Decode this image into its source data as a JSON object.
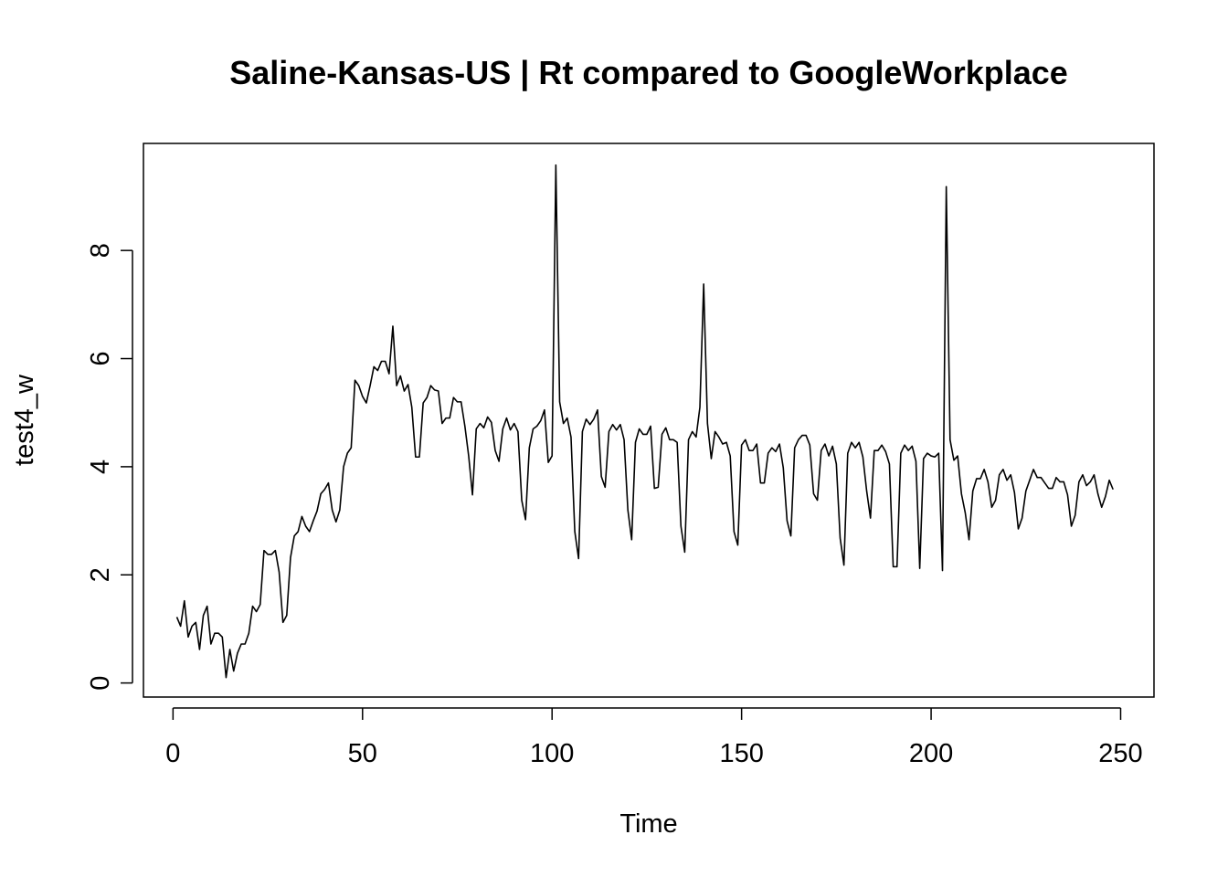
{
  "chart_data": {
    "type": "line",
    "title": "Saline-Kansas-US | Rt compared to GoogleWorkplace",
    "xlabel": "Time",
    "ylabel": "test4_w",
    "xlim": [
      -7.8,
      258.8
    ],
    "ylim": [
      -0.26,
      9.98
    ],
    "xticks": [
      0,
      50,
      100,
      150,
      200,
      250
    ],
    "yticks": [
      0,
      2,
      4,
      6,
      8
    ],
    "grid": false,
    "legend": "none",
    "line_color": "#000000",
    "x_start": 1,
    "series": [
      {
        "values": [
          1.22,
          1.05,
          1.52,
          0.85,
          1.05,
          1.12,
          0.62,
          1.25,
          1.42,
          0.72,
          0.92,
          0.92,
          0.85,
          0.1,
          0.62,
          0.22,
          0.55,
          0.72,
          0.72,
          0.92,
          1.42,
          1.32,
          1.45,
          2.45,
          2.38,
          2.38,
          2.45,
          2.05,
          1.12,
          1.25,
          2.32,
          2.72,
          2.8,
          3.08,
          2.9,
          2.8,
          3.0,
          3.18,
          3.5,
          3.58,
          3.7,
          3.2,
          2.98,
          3.2,
          4.0,
          4.25,
          4.35,
          5.6,
          5.5,
          5.3,
          5.18,
          5.5,
          5.85,
          5.78,
          5.95,
          5.95,
          5.72,
          6.6,
          5.5,
          5.68,
          5.4,
          5.52,
          5.1,
          4.18,
          4.18,
          5.18,
          5.28,
          5.5,
          5.42,
          5.4,
          4.8,
          4.9,
          4.9,
          5.28,
          5.2,
          5.2,
          4.75,
          4.2,
          3.48,
          4.7,
          4.8,
          4.72,
          4.92,
          4.82,
          4.3,
          4.1,
          4.7,
          4.9,
          4.68,
          4.8,
          4.65,
          3.38,
          3.02,
          4.35,
          4.7,
          4.75,
          4.85,
          5.05,
          4.08,
          4.2,
          9.58,
          5.2,
          4.8,
          4.9,
          4.55,
          2.8,
          2.3,
          4.65,
          4.88,
          4.78,
          4.88,
          5.05,
          3.82,
          3.62,
          4.65,
          4.78,
          4.68,
          4.78,
          4.5,
          3.2,
          2.65,
          4.45,
          4.7,
          4.6,
          4.6,
          4.75,
          3.6,
          3.62,
          4.6,
          4.72,
          4.5,
          4.5,
          4.45,
          2.9,
          2.42,
          4.5,
          4.65,
          4.55,
          5.1,
          7.38,
          4.8,
          4.15,
          4.65,
          4.55,
          4.42,
          4.45,
          4.2,
          2.8,
          2.55,
          4.4,
          4.5,
          4.3,
          4.3,
          4.42,
          3.7,
          3.7,
          4.25,
          4.35,
          4.28,
          4.42,
          3.98,
          3.0,
          2.72,
          4.35,
          4.5,
          4.58,
          4.58,
          4.4,
          3.5,
          3.38,
          4.3,
          4.42,
          4.2,
          4.38,
          4.05,
          2.68,
          2.18,
          4.25,
          4.45,
          4.35,
          4.45,
          4.18,
          3.55,
          3.05,
          4.3,
          4.3,
          4.4,
          4.28,
          4.05,
          2.15,
          2.15,
          4.25,
          4.4,
          4.3,
          4.38,
          4.1,
          2.12,
          4.15,
          4.25,
          4.2,
          4.18,
          4.25,
          2.08,
          9.18,
          4.5,
          4.12,
          4.2,
          3.5,
          3.15,
          2.65,
          3.55,
          3.78,
          3.78,
          3.95,
          3.72,
          3.25,
          3.38,
          3.85,
          3.95,
          3.75,
          3.85,
          3.52,
          2.85,
          3.05,
          3.55,
          3.75,
          3.95,
          3.8,
          3.8,
          3.7,
          3.6,
          3.6,
          3.8,
          3.72,
          3.72,
          3.48,
          2.9,
          3.1,
          3.72,
          3.85,
          3.65,
          3.72,
          3.85,
          3.5,
          3.25,
          3.45,
          3.75,
          3.58
        ]
      }
    ]
  }
}
